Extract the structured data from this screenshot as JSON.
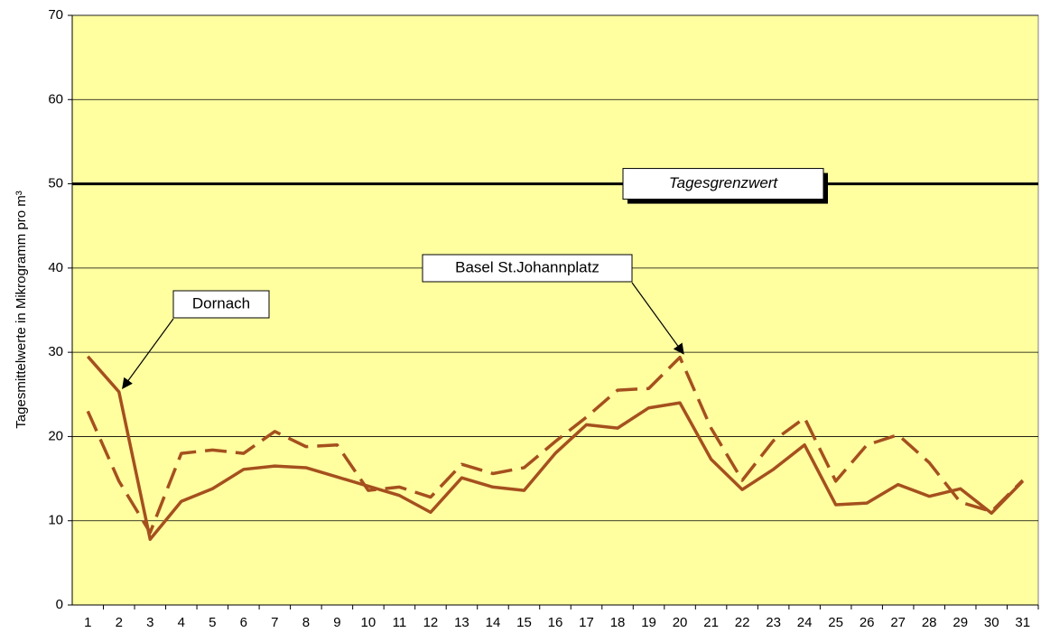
{
  "chart_data": {
    "type": "line",
    "y_label": "Tagesmittelwerte in Mikrogramm pro m³",
    "categories": [
      "1",
      "2",
      "3",
      "4",
      "5",
      "6",
      "7",
      "8",
      "9",
      "10",
      "11",
      "12",
      "13",
      "14",
      "15",
      "16",
      "17",
      "18",
      "19",
      "20",
      "21",
      "22",
      "23",
      "24",
      "25",
      "26",
      "27",
      "28",
      "29",
      "30",
      "31"
    ],
    "series": [
      {
        "name": "Dornach",
        "color": "#a5501e",
        "dash": false,
        "values": [
          29.5,
          25.3,
          7.8,
          12.3,
          13.8,
          16.1,
          16.5,
          16.3,
          15.2,
          14.1,
          13.0,
          11.0,
          15.1,
          14.0,
          13.6,
          18.0,
          21.4,
          21.0,
          23.4,
          24.0,
          17.3,
          13.7,
          16.1,
          19.0,
          11.9,
          12.1,
          14.3,
          12.9,
          13.8,
          10.9,
          14.7
        ]
      },
      {
        "name": "Basel St.Johannplatz",
        "color": "#a5501e",
        "dash": true,
        "values": [
          23.0,
          14.7,
          8.6,
          18.0,
          18.4,
          18.0,
          20.6,
          18.8,
          19.0,
          13.6,
          14.0,
          12.8,
          16.7,
          15.6,
          16.3,
          19.4,
          22.3,
          25.5,
          25.7,
          29.4,
          21.0,
          14.8,
          19.5,
          22.2,
          14.7,
          19.0,
          20.2,
          16.9,
          12.2,
          11.1,
          14.8
        ]
      }
    ],
    "threshold": {
      "value": 50,
      "label": "Tagesgrenzwert"
    },
    "ylim": [
      0,
      70
    ],
    "yticks": [
      0,
      10,
      20,
      30,
      40,
      50,
      60,
      70
    ],
    "grid": true,
    "background": "#ffffa0"
  }
}
